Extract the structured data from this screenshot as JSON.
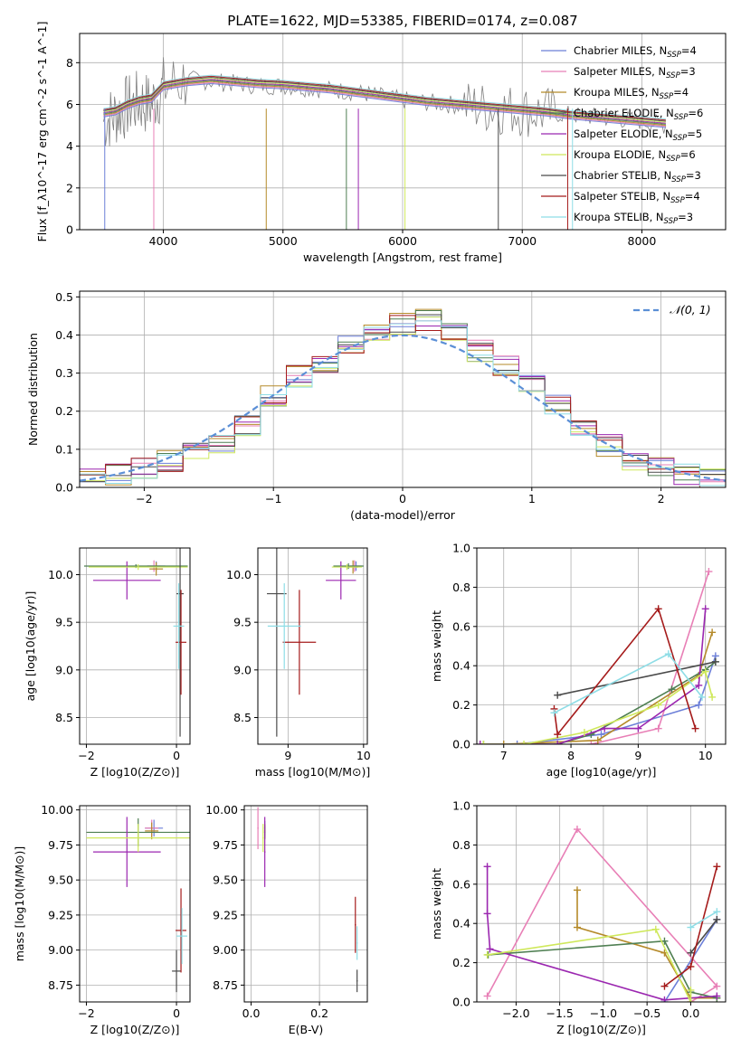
{
  "title": "PLATE=1622, MJD=53385, FIBERID=0174, z=0.087",
  "models": [
    {
      "key": "chab_miles",
      "label": "Chabrier MILES, N_SSP=4",
      "color": "#6c7fd8"
    },
    {
      "key": "salp_miles",
      "label": "Salpeter MILES, N_SSP=3",
      "color": "#e87fb6"
    },
    {
      "key": "krou_miles",
      "label": "Kroupa MILES, N_SSP=4",
      "color": "#b58a2a"
    },
    {
      "key": "chab_elodie",
      "label": "Chabrier ELODIE, N_SSP=6",
      "color": "#4f7f52"
    },
    {
      "key": "salp_elodie",
      "label": "Salpeter ELODIE, N_SSP=5",
      "color": "#9b27b0"
    },
    {
      "key": "krou_elodie",
      "label": "Kroupa ELODIE, N_SSP=6",
      "color": "#cfe85b"
    },
    {
      "key": "chab_stelib",
      "label": "Chabrier STELIB, N_SSP=3",
      "color": "#4a4a4a"
    },
    {
      "key": "salp_stelib",
      "label": "Salpeter STELIB, N_SSP=4",
      "color": "#a51b1b"
    },
    {
      "key": "krou_stelib",
      "label": "Kroupa STELIB, N_SSP=3",
      "color": "#8edde6"
    }
  ],
  "chart_data": [
    {
      "id": "spectrum",
      "type": "line",
      "xlabel": "wavelength [Angstrom, rest frame]",
      "ylabel": "Flux [f_λ10^-17 erg cm^-2 s^-1 A^-1]",
      "xlim": [
        3300,
        8700
      ],
      "ylim": [
        0,
        9.4
      ],
      "xticks": [
        4000,
        5000,
        6000,
        7000,
        8000
      ],
      "yticks": [
        0,
        2,
        4,
        6,
        8
      ],
      "data_series": {
        "x": [
          3500,
          3600,
          3700,
          3800,
          3900,
          4000,
          4200,
          4400,
          4600,
          4800,
          5000,
          5200,
          5400,
          5600,
          5800,
          6000,
          6200,
          6400,
          6600,
          6800,
          7000,
          7200,
          7400,
          7600,
          7800,
          8000,
          8200
        ],
        "y": [
          5.2,
          5.5,
          5.9,
          6.1,
          6.0,
          6.8,
          7.2,
          7.1,
          7.0,
          6.9,
          6.9,
          6.8,
          6.7,
          6.6,
          6.4,
          6.2,
          6.1,
          6.0,
          5.9,
          5.8,
          5.7,
          5.6,
          5.5,
          5.4,
          5.3,
          5.2,
          5.0
        ]
      },
      "model": {
        "x": [
          3500,
          3600,
          3700,
          3800,
          3900,
          4000,
          4200,
          4400,
          4600,
          4800,
          5000,
          5200,
          5400,
          5600,
          5800,
          6000,
          6200,
          6400,
          6600,
          6800,
          7000,
          7200,
          7400,
          7600,
          7800,
          8000,
          8200
        ],
        "y": [
          5.6,
          5.7,
          6.0,
          6.2,
          6.3,
          6.9,
          7.1,
          7.2,
          7.1,
          7.0,
          6.95,
          6.85,
          6.75,
          6.6,
          6.45,
          6.3,
          6.15,
          6.05,
          5.95,
          5.85,
          5.75,
          5.65,
          5.5,
          5.4,
          5.3,
          5.2,
          5.1
        ]
      }
    },
    {
      "id": "residuals",
      "type": "line",
      "xlabel": "(data-model)/error",
      "ylabel": "Normed distribution",
      "xlim": [
        -2.5,
        2.5
      ],
      "ylim": [
        0,
        0.515
      ],
      "xticks": [
        -2,
        -1,
        0,
        1,
        2
      ],
      "yticks": [
        0.0,
        0.1,
        0.2,
        0.3,
        0.4,
        0.5
      ],
      "legend": "N(0,1)",
      "bin_edges": [
        -2.5,
        -2.3,
        -2.1,
        -1.9,
        -1.7,
        -1.5,
        -1.3,
        -1.1,
        -0.9,
        -0.7,
        -0.5,
        -0.3,
        -0.1,
        0.1,
        0.3,
        0.5,
        0.7,
        0.9,
        1.1,
        1.3,
        1.5,
        1.7,
        1.9,
        2.1,
        2.3,
        2.5
      ],
      "hist": [
        0.025,
        0.035,
        0.05,
        0.07,
        0.095,
        0.11,
        0.16,
        0.24,
        0.29,
        0.33,
        0.37,
        0.4,
        0.43,
        0.44,
        0.41,
        0.36,
        0.32,
        0.28,
        0.22,
        0.16,
        0.11,
        0.075,
        0.05,
        0.035,
        0.025
      ]
    },
    {
      "id": "age_vs_Z",
      "type": "scatter",
      "xlabel": "Z [log10(Z/Z⊙)]",
      "ylabel": "age [log10(age/yr)]",
      "xlim": [
        -2.15,
        0.3
      ],
      "ylim": [
        8.22,
        10.28
      ],
      "xticks": [
        -2,
        0
      ],
      "yticks": [
        8.5,
        9.0,
        9.5,
        10.0
      ],
      "points": [
        {
          "m": "chab_miles",
          "x": -0.45,
          "y": 10.09,
          "xe": 0.2,
          "ye": 0.05
        },
        {
          "m": "salp_miles",
          "x": -0.5,
          "y": 10.09,
          "xe": 0.15,
          "ye": 0.06
        },
        {
          "m": "krou_miles",
          "x": -0.45,
          "y": 10.06,
          "xe": 0.15,
          "ye": 0.07
        },
        {
          "m": "chab_elodie",
          "x": -0.9,
          "y": 10.09,
          "xe": 1.15,
          "ye": 0.02
        },
        {
          "m": "salp_elodie",
          "x": -1.1,
          "y": 9.94,
          "xe": 0.75,
          "ye": 0.2
        },
        {
          "m": "krou_elodie",
          "x": -0.85,
          "y": 10.08,
          "xe": 1.1,
          "ye": 0.03
        },
        {
          "m": "chab_stelib",
          "x": 0.08,
          "y": 9.8,
          "xe": 0.08,
          "ye": 1.5
        },
        {
          "m": "salp_stelib",
          "x": 0.1,
          "y": 9.29,
          "xe": 0.12,
          "ye": 0.55
        },
        {
          "m": "krou_stelib",
          "x": 0.05,
          "y": 9.46,
          "xe": 0.12,
          "ye": 0.45
        }
      ]
    },
    {
      "id": "age_vs_mass",
      "type": "scatter",
      "xlabel": "mass [log10(M/M⊙)]",
      "ylabel": "",
      "xlim": [
        8.6,
        10.05
      ],
      "ylim": [
        8.22,
        10.28
      ],
      "xticks": [
        9,
        10
      ],
      "yticks": [
        8.5,
        9.0,
        9.5,
        10.0
      ],
      "points": [
        {
          "m": "chab_miles",
          "x": 9.9,
          "y": 10.09,
          "xe": 0.08,
          "ye": 0.05
        },
        {
          "m": "salp_miles",
          "x": 9.88,
          "y": 10.09,
          "xe": 0.06,
          "ye": 0.06
        },
        {
          "m": "krou_miles",
          "x": 9.86,
          "y": 10.08,
          "xe": 0.07,
          "ye": 0.07
        },
        {
          "m": "chab_elodie",
          "x": 9.8,
          "y": 10.09,
          "xe": 0.2,
          "ye": 0.03
        },
        {
          "m": "salp_elodie",
          "x": 9.7,
          "y": 9.94,
          "xe": 0.2,
          "ye": 0.2
        },
        {
          "m": "krou_elodie",
          "x": 9.78,
          "y": 10.08,
          "xe": 0.2,
          "ye": 0.03
        },
        {
          "m": "chab_stelib",
          "x": 8.85,
          "y": 9.8,
          "xe": 0.13,
          "ye": 1.5
        },
        {
          "m": "salp_stelib",
          "x": 9.15,
          "y": 9.29,
          "xe": 0.22,
          "ye": 0.55
        },
        {
          "m": "krou_stelib",
          "x": 8.95,
          "y": 9.46,
          "xe": 0.22,
          "ye": 0.45
        }
      ]
    },
    {
      "id": "mass_weight_vs_age",
      "type": "line",
      "xlabel": "age [log10(age/yr)]",
      "ylabel": "mass weight",
      "xlim": [
        6.6,
        10.3
      ],
      "ylim": [
        0,
        1.0
      ],
      "xticks": [
        7,
        8,
        9,
        10
      ],
      "yticks": [
        0.0,
        0.2,
        0.4,
        0.6,
        0.8,
        1.0
      ],
      "series": [
        {
          "m": "chab_miles",
          "x": [
            7.2,
            8.45,
            9.9,
            10.15
          ],
          "y": [
            0.0,
            0.05,
            0.2,
            0.45
          ]
        },
        {
          "m": "salp_miles",
          "x": [
            8.3,
            9.3,
            10.05
          ],
          "y": [
            0.0,
            0.08,
            0.88
          ]
        },
        {
          "m": "krou_miles",
          "x": [
            7.0,
            8.4,
            9.9,
            10.1
          ],
          "y": [
            0.0,
            0.02,
            0.35,
            0.57
          ]
        },
        {
          "m": "chab_elodie",
          "x": [
            6.7,
            7.8,
            8.3,
            9.5,
            10.0,
            10.15
          ],
          "y": [
            0.0,
            0.0,
            0.05,
            0.28,
            0.38,
            0.42
          ]
        },
        {
          "m": "salp_elodie",
          "x": [
            6.65,
            7.8,
            8.5,
            9.0,
            9.9,
            10.0
          ],
          "y": [
            0.0,
            0.0,
            0.08,
            0.08,
            0.3,
            0.69
          ]
        },
        {
          "m": "krou_elodie",
          "x": [
            6.7,
            7.3,
            8.2,
            9.3,
            10.0,
            10.1
          ],
          "y": [
            0.0,
            0.0,
            0.06,
            0.2,
            0.37,
            0.24
          ]
        },
        {
          "m": "chab_stelib",
          "x": [
            7.8,
            10.15
          ],
          "y": [
            0.25,
            0.42
          ]
        },
        {
          "m": "salp_stelib",
          "x": [
            7.75,
            7.8,
            9.3,
            9.85
          ],
          "y": [
            0.18,
            0.05,
            0.69,
            0.08
          ]
        },
        {
          "m": "krou_stelib",
          "x": [
            7.75,
            9.45,
            9.95
          ],
          "y": [
            0.16,
            0.46,
            0.24
          ]
        }
      ]
    },
    {
      "id": "mass_vs_Z",
      "type": "scatter",
      "xlabel": "Z [log10(Z/Z⊙)]",
      "ylabel": "mass [log10(M/M⊙)]",
      "xlim": [
        -2.15,
        0.3
      ],
      "ylim": [
        8.63,
        10.03
      ],
      "xticks": [
        -2,
        0
      ],
      "yticks": [
        8.75,
        9.0,
        9.25,
        9.5,
        9.75,
        10.0
      ],
      "points": [
        {
          "m": "chab_miles",
          "x": -0.5,
          "y": 9.87,
          "xe": 0.2,
          "ye": 0.06
        },
        {
          "m": "salp_miles",
          "x": -0.55,
          "y": 9.87,
          "xe": 0.15,
          "ye": 0.06
        },
        {
          "m": "krou_miles",
          "x": -0.55,
          "y": 9.85,
          "xe": 0.15,
          "ye": 0.06
        },
        {
          "m": "chab_elodie",
          "x": -0.85,
          "y": 9.84,
          "xe": 1.15,
          "ye": 0.1
        },
        {
          "m": "salp_elodie",
          "x": -1.1,
          "y": 9.7,
          "xe": 0.75,
          "ye": 0.25
        },
        {
          "m": "krou_elodie",
          "x": -0.85,
          "y": 9.8,
          "xe": 1.15,
          "ye": 0.1
        },
        {
          "m": "chab_stelib",
          "x": 0.0,
          "y": 8.85,
          "xe": 0.1,
          "ye": 0.15
        },
        {
          "m": "salp_stelib",
          "x": 0.1,
          "y": 9.14,
          "xe": 0.12,
          "ye": 0.3
        },
        {
          "m": "krou_stelib",
          "x": 0.12,
          "y": 9.1,
          "xe": 0.12,
          "ye": 0.2
        }
      ]
    },
    {
      "id": "mass_vs_EBV",
      "type": "scatter",
      "xlabel": "E(B-V)",
      "ylabel": "",
      "xlim": [
        -0.02,
        0.34
      ],
      "ylim": [
        8.63,
        10.03
      ],
      "xticks": [
        0.0,
        0.2
      ],
      "yticks": [
        8.75,
        9.0,
        9.25,
        9.5,
        9.75,
        10.0
      ],
      "points": [
        {
          "m": "chab_miles",
          "x": 0.04,
          "y": 9.87,
          "xe": 0.002,
          "ye": 0.05
        },
        {
          "m": "salp_miles",
          "x": 0.02,
          "y": 9.87,
          "xe": 0.002,
          "ye": 0.15
        },
        {
          "m": "krou_miles",
          "x": 0.04,
          "y": 9.85,
          "xe": 0.002,
          "ye": 0.05
        },
        {
          "m": "chab_elodie",
          "x": 0.04,
          "y": 9.84,
          "xe": 0.002,
          "ye": 0.05
        },
        {
          "m": "salp_elodie",
          "x": 0.04,
          "y": 9.7,
          "xe": 0.002,
          "ye": 0.25
        },
        {
          "m": "krou_elodie",
          "x": 0.035,
          "y": 9.8,
          "xe": 0.002,
          "ye": 0.1
        },
        {
          "m": "chab_stelib",
          "x": 0.31,
          "y": 8.78,
          "xe": 0.002,
          "ye": 0.08
        },
        {
          "m": "salp_stelib",
          "x": 0.305,
          "y": 9.18,
          "xe": 0.002,
          "ye": 0.2
        },
        {
          "m": "krou_stelib",
          "x": 0.31,
          "y": 9.05,
          "xe": 0.002,
          "ye": 0.12
        }
      ]
    },
    {
      "id": "mass_weight_vs_Z",
      "type": "line",
      "xlabel": "Z [log10(Z/Z⊙)]",
      "ylabel": "mass weight",
      "xlim": [
        -2.45,
        0.4
      ],
      "ylim": [
        0,
        1.0
      ],
      "xticks": [
        -2.0,
        -1.5,
        -1.0,
        -0.5,
        0.0
      ],
      "yticks": [
        0.0,
        0.2,
        0.4,
        0.6,
        0.8,
        1.0
      ],
      "series": [
        {
          "m": "chab_miles",
          "x": [
            -0.3,
            0.3
          ],
          "y": [
            0.0,
            0.42
          ]
        },
        {
          "m": "salp_miles",
          "x": [
            -2.33,
            -1.3,
            0.3,
            0.0
          ],
          "y": [
            0.03,
            0.88,
            0.08,
            0.0
          ]
        },
        {
          "m": "krou_miles",
          "x": [
            -1.3,
            -1.3,
            -0.3,
            0.0,
            0.3
          ],
          "y": [
            0.57,
            0.38,
            0.25,
            0.02,
            0.02
          ]
        },
        {
          "m": "chab_elodie",
          "x": [
            -2.32,
            -0.3,
            0.0,
            0.3
          ],
          "y": [
            0.24,
            0.31,
            0.05,
            0.02
          ]
        },
        {
          "m": "salp_elodie",
          "x": [
            -2.33,
            -2.33,
            -2.3,
            -0.3,
            0.3
          ],
          "y": [
            0.69,
            0.45,
            0.27,
            0.01,
            0.03
          ]
        },
        {
          "m": "krou_elodie",
          "x": [
            -2.33,
            -0.4,
            0.0,
            0.0
          ],
          "y": [
            0.24,
            0.37,
            0.0,
            0.06
          ]
        },
        {
          "m": "chab_stelib",
          "x": [
            0.0,
            0.3
          ],
          "y": [
            0.25,
            0.42
          ]
        },
        {
          "m": "salp_stelib",
          "x": [
            -0.3,
            0.0,
            0.3
          ],
          "y": [
            0.08,
            0.18,
            0.69
          ]
        },
        {
          "m": "krou_stelib",
          "x": [
            0.0,
            0.3
          ],
          "y": [
            0.38,
            0.46
          ]
        }
      ]
    }
  ]
}
